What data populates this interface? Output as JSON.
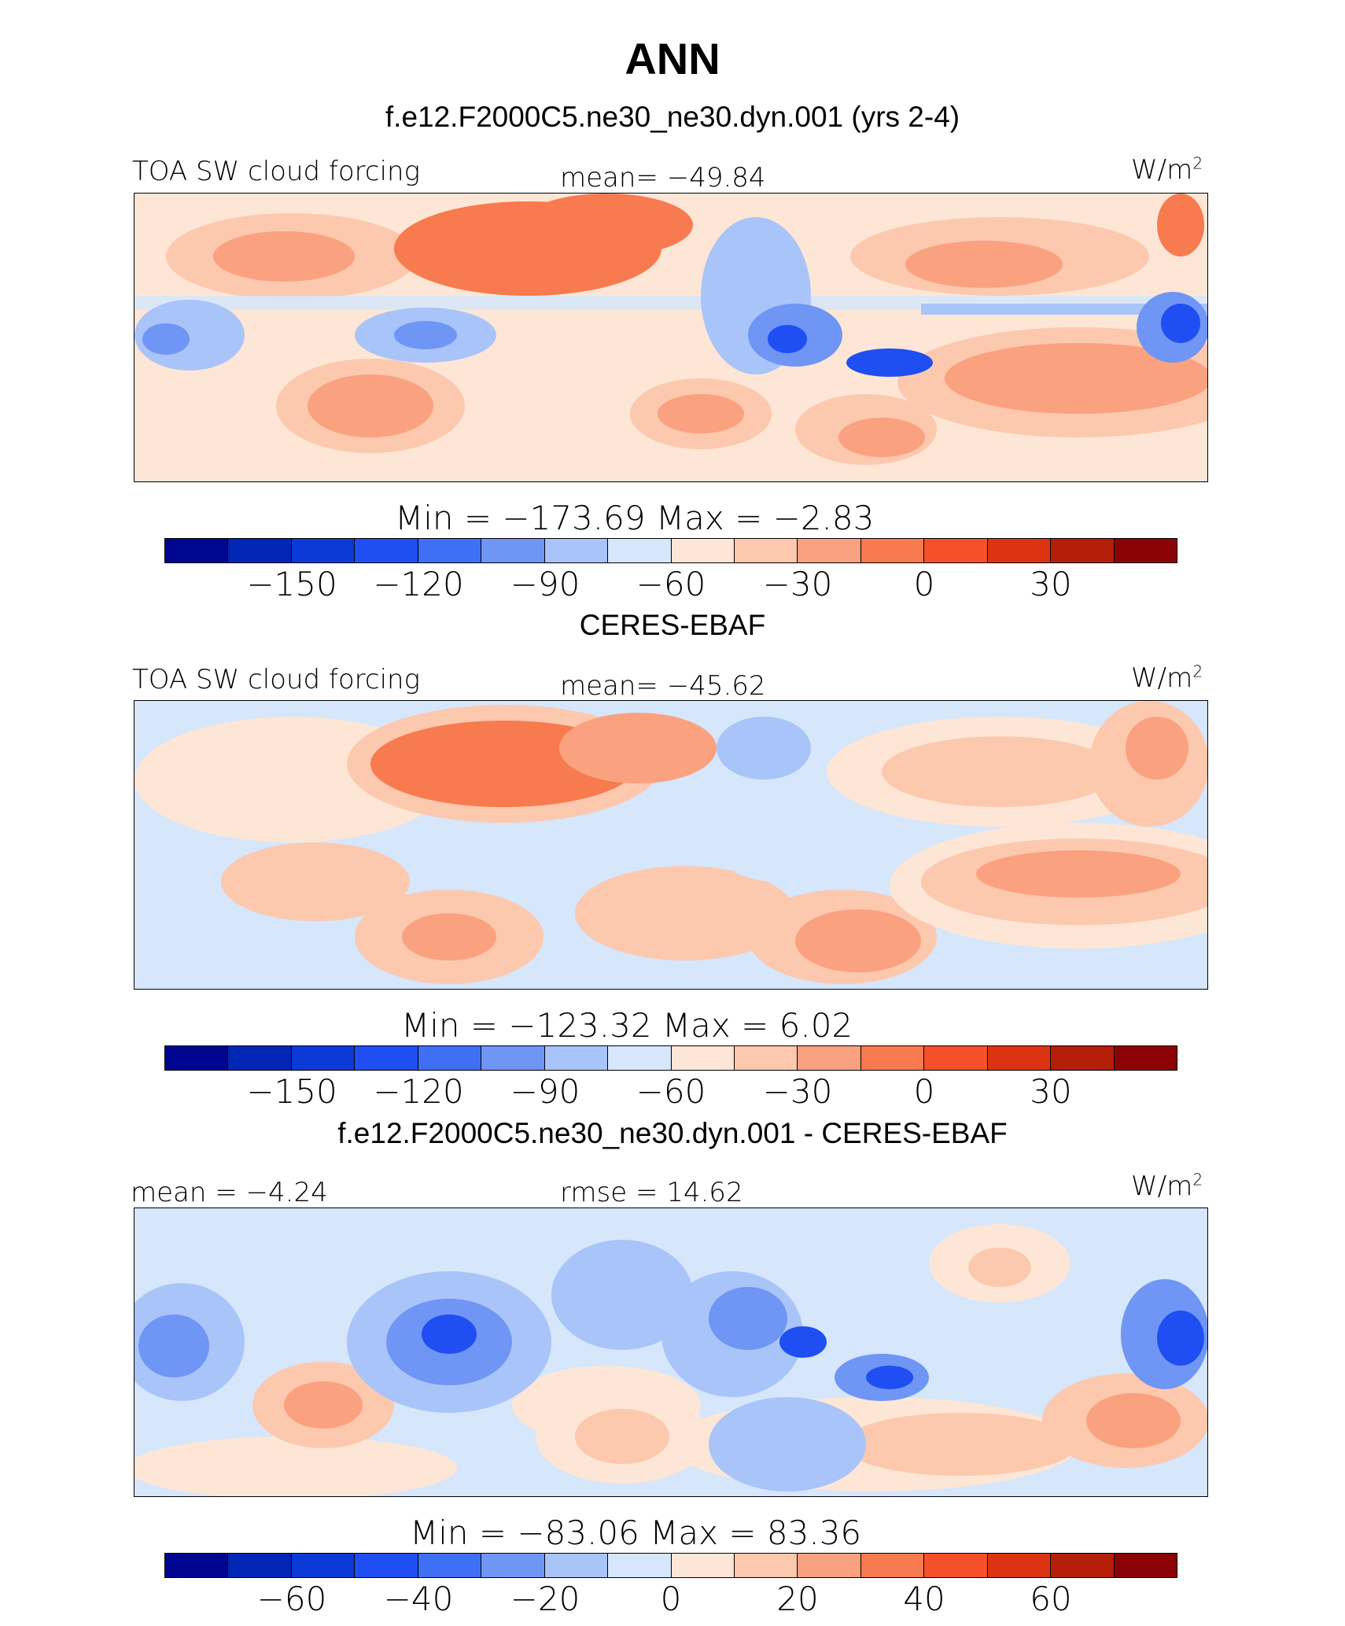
{
  "title": "ANN",
  "chart_data": [
    {
      "type": "heatmap",
      "title": "f.e12.F2000C5.ne30_ne30.dyn.001 (yrs 2-4)",
      "left_label": "TOA SW cloud forcing",
      "center_label": "mean= −49.84",
      "units": "W/m",
      "units_sup": "2",
      "mean": -49.84,
      "min": -173.69,
      "max": -2.83,
      "minmax_text": "Min  =  −173.69  Max  =    −2.83",
      "colorbar_ticks": [
        "−150",
        "−120",
        "−90",
        "−60",
        "−30",
        "0",
        "30"
      ],
      "colorbar_levels": [
        -160,
        -150,
        -140,
        -130,
        -120,
        -110,
        -100,
        -90,
        -80,
        -70,
        -60,
        -50,
        -40,
        -30,
        -20,
        -10,
        0,
        10,
        20,
        30,
        40
      ]
    },
    {
      "type": "heatmap",
      "title": "CERES-EBAF",
      "left_label": "TOA SW cloud forcing",
      "center_label": "mean= −45.62",
      "units": "W/m",
      "units_sup": "2",
      "mean": -45.62,
      "min": -123.32,
      "max": 6.02,
      "minmax_text": "Min  =  −123.32  Max  =      6.02",
      "colorbar_ticks": [
        "−150",
        "−120",
        "−90",
        "−60",
        "−30",
        "0",
        "30"
      ]
    },
    {
      "type": "heatmap",
      "title": "f.e12.F2000C5.ne30_ne30.dyn.001 - CERES-EBAF",
      "left_label": "mean  =   −4.24",
      "center_label": "rmse  =   14.62",
      "units": "W/m",
      "units_sup": "2",
      "mean": -4.24,
      "rmse": 14.62,
      "min": -83.06,
      "max": 83.36,
      "minmax_text": "Min  =  −83.06  Max  =   83.36",
      "colorbar_ticks": [
        "−60",
        "−40",
        "−20",
        "0",
        "20",
        "40",
        "60"
      ]
    }
  ],
  "colorbar_colors": [
    "#00068f",
    "#0226b6",
    "#0b3ad6",
    "#1f4ff2",
    "#3f6ff5",
    "#6f95f5",
    "#a9c4f8",
    "#d6e6fb",
    "#fde6d6",
    "#fcc8ae",
    "#faa180",
    "#f87a4f",
    "#f4502a",
    "#dc3412",
    "#b51e08",
    "#8c0305"
  ]
}
